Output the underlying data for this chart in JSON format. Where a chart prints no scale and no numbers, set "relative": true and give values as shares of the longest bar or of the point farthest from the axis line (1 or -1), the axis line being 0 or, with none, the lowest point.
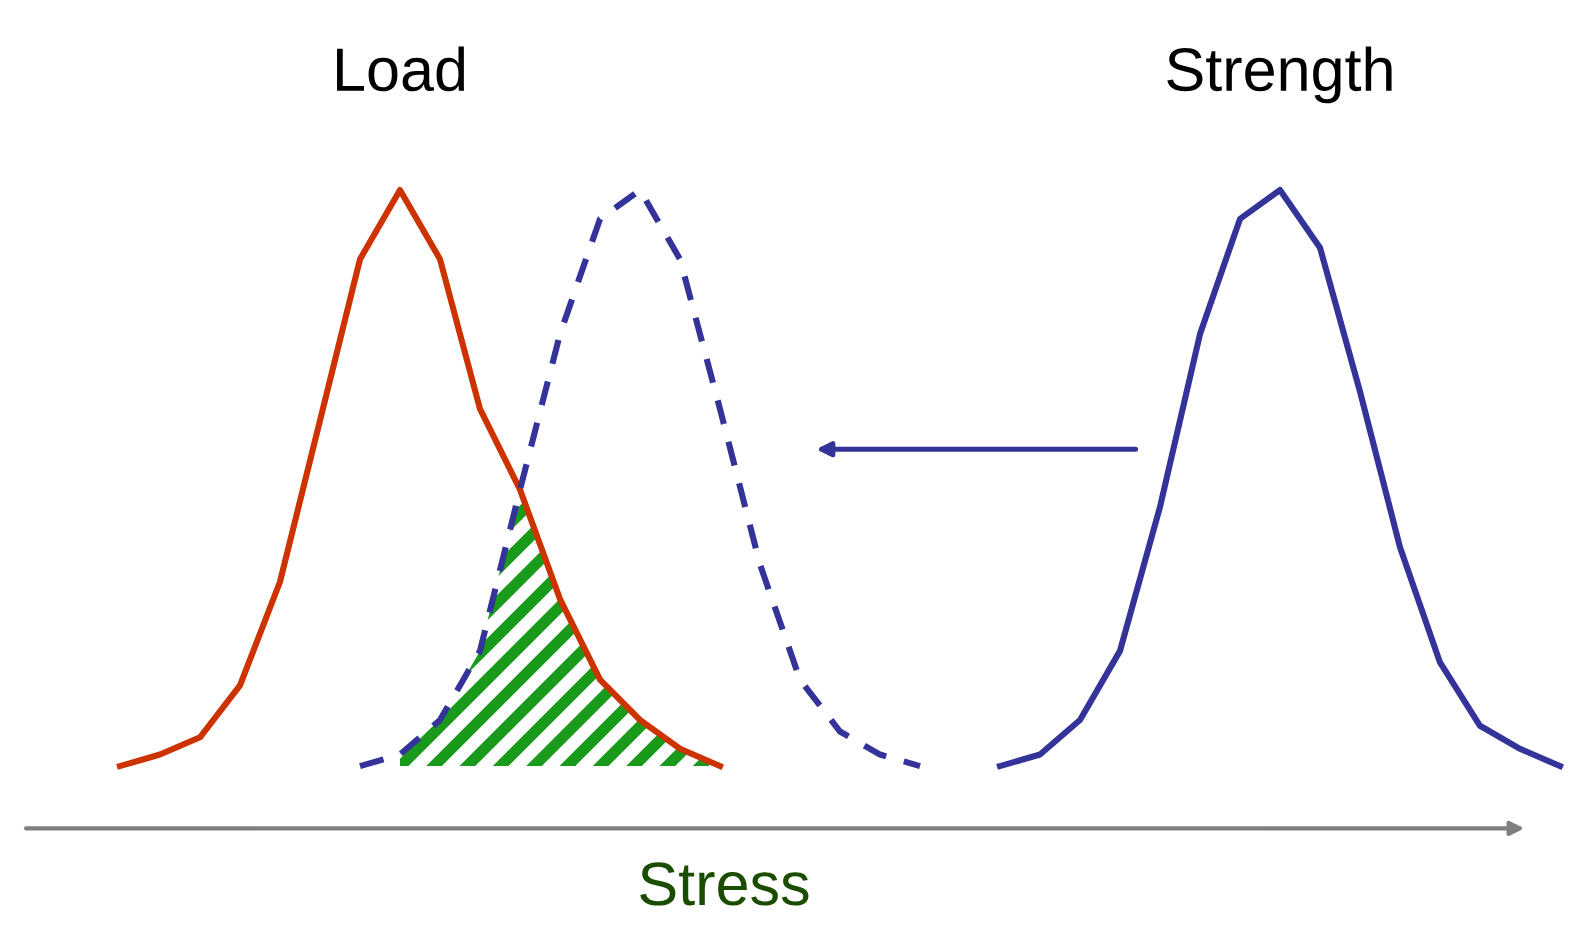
{
  "chart_data": {
    "type": "line",
    "relative": true,
    "xlabel": "Stress",
    "categories": [
      null,
      null,
      null,
      null,
      null,
      null,
      null,
      null,
      null,
      null,
      null,
      null,
      null,
      null,
      null,
      null,
      null,
      null,
      null,
      null,
      null,
      null,
      null,
      null,
      null,
      null,
      null,
      null,
      null,
      null,
      null,
      null,
      null,
      null,
      null,
      null,
      null
    ],
    "series": [
      {
        "type": "area",
        "color": "#1a9a1a",
        "values": [
          null,
          null,
          null,
          null,
          null,
          null,
          null,
          0.02,
          0.08,
          0.2,
          0.48,
          0.29,
          0.15,
          0.08,
          0.03,
          0,
          null,
          null,
          null,
          null,
          null,
          null,
          null,
          null,
          null,
          null,
          null,
          null,
          null,
          null,
          null,
          null,
          null,
          null,
          null,
          null,
          null
        ]
      },
      {
        "name": "Load",
        "color": "#cc3300",
        "line_style": "solid",
        "values": [
          0,
          0.02,
          0.05,
          0.14,
          0.32,
          0.6,
          0.88,
          1,
          0.88,
          0.62,
          0.48,
          0.29,
          0.15,
          0.08,
          0.03,
          0,
          null,
          null,
          null,
          null,
          null,
          null,
          null,
          null,
          null,
          null,
          null,
          null,
          null,
          null,
          null,
          null,
          null,
          null,
          null,
          null,
          null
        ]
      },
      {
        "color": "#333399",
        "line_style": "dashed",
        "values": [
          null,
          null,
          null,
          null,
          null,
          null,
          0,
          0.02,
          0.08,
          0.2,
          0.48,
          0.75,
          0.95,
          1,
          0.88,
          0.62,
          0.35,
          0.15,
          0.06,
          0.02,
          0,
          null,
          null,
          null,
          null,
          null,
          null,
          null,
          null,
          null,
          null,
          null,
          null,
          null,
          null,
          null,
          null
        ]
      },
      {
        "name": "Strength",
        "color": "#333399",
        "line_style": "solid",
        "values": [
          null,
          null,
          null,
          null,
          null,
          null,
          null,
          null,
          null,
          null,
          null,
          null,
          null,
          null,
          null,
          null,
          null,
          null,
          null,
          null,
          null,
          null,
          0,
          0.02,
          0.08,
          0.2,
          0.45,
          0.75,
          0.95,
          1,
          0.9,
          0.65,
          0.38,
          0.18,
          0.07,
          0.03,
          0
        ]
      }
    ]
  }
}
